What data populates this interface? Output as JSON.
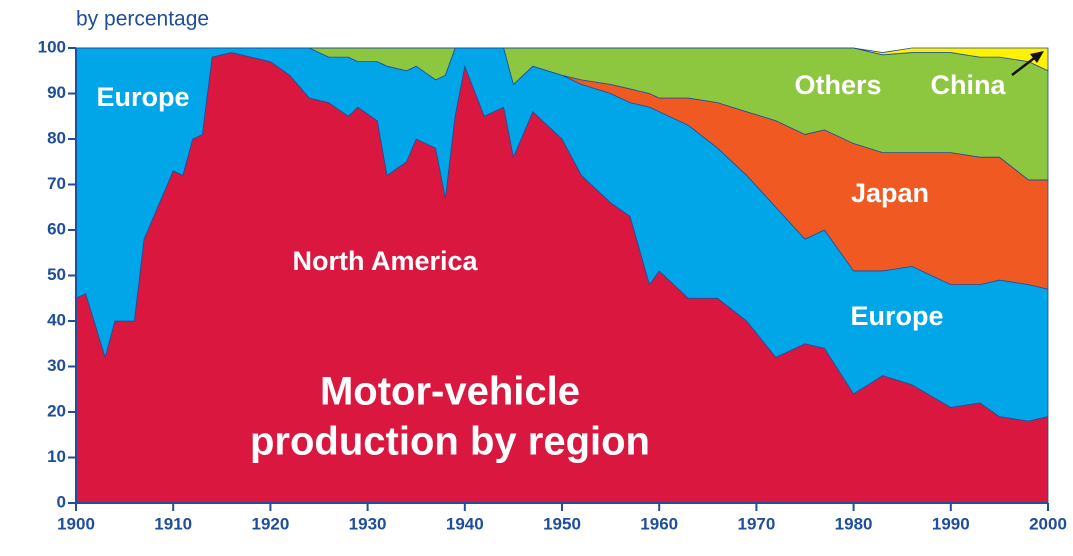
{
  "chart_data": {
    "type": "stacked_area",
    "title": [
      "Motor-vehicle",
      "production by region"
    ],
    "y_label": "by percentage",
    "x": [
      1900,
      1901,
      1903,
      1904,
      1906,
      1907,
      1909,
      1910,
      1911,
      1912,
      1913,
      1914,
      1916,
      1920,
      1922,
      1924,
      1926,
      1928,
      1929,
      1931,
      1932,
      1934,
      1935,
      1937,
      1938,
      1939,
      1940,
      1942,
      1944,
      1945,
      1947,
      1950,
      1952,
      1955,
      1957,
      1959,
      1960,
      1963,
      1966,
      1969,
      1972,
      1975,
      1977,
      1980,
      1983,
      1986,
      1990,
      1993,
      1995,
      1998,
      2000
    ],
    "series": [
      {
        "name": "North America",
        "color": "#d9173f",
        "values": [
          45,
          46,
          32,
          40,
          40,
          58,
          68,
          73,
          72,
          80,
          81,
          98,
          99,
          97,
          94,
          89,
          88,
          85,
          87,
          84,
          72,
          75,
          80,
          78,
          67,
          85,
          96,
          85,
          87,
          76,
          86,
          80,
          72,
          66,
          63,
          48,
          51,
          45,
          45,
          40,
          32,
          35,
          34,
          24,
          28,
          26,
          21,
          22,
          19,
          18,
          19
        ]
      },
      {
        "name": "Europe",
        "color": "#00a6e8",
        "values": [
          55,
          54,
          68,
          60,
          60,
          42,
          32,
          27,
          28,
          20,
          19,
          2,
          1,
          3,
          6,
          11,
          10,
          13,
          10,
          13,
          24,
          20,
          16,
          15,
          27,
          15,
          4,
          15,
          13,
          16,
          10,
          14,
          20,
          24,
          25,
          39,
          35,
          38,
          33,
          32,
          33,
          23,
          26,
          27,
          23,
          26,
          27,
          26,
          30,
          30,
          28
        ]
      },
      {
        "name": "Japan",
        "color": "#f05a22",
        "values": [
          0,
          0,
          0,
          0,
          0,
          0,
          0,
          0,
          0,
          0,
          0,
          0,
          0,
          0,
          0,
          0,
          0,
          0,
          0,
          0,
          0,
          0,
          0,
          0,
          0,
          0,
          0,
          0,
          0,
          0,
          0,
          0,
          1,
          2,
          3,
          3,
          3,
          6,
          10,
          14,
          19,
          23,
          22,
          28,
          26,
          25,
          29,
          28,
          27,
          23,
          24
        ]
      },
      {
        "name": "Others",
        "color": "#8dc63f",
        "values": [
          0,
          0,
          0,
          0,
          0,
          0,
          0,
          0,
          0,
          0,
          0,
          0,
          0,
          0,
          0,
          0,
          2,
          2,
          3,
          3,
          4,
          5,
          4,
          7,
          6,
          0,
          0,
          0,
          0,
          8,
          4,
          6,
          7,
          8,
          9,
          10,
          11,
          11,
          12,
          14,
          16,
          19,
          18,
          21,
          21.5,
          22,
          22,
          22,
          22,
          26,
          24
        ]
      },
      {
        "name": "China",
        "color": "#fff200",
        "values": [
          0,
          0,
          0,
          0,
          0,
          0,
          0,
          0,
          0,
          0,
          0,
          0,
          0,
          0,
          0,
          0,
          0,
          0,
          0,
          0,
          0,
          0,
          0,
          0,
          0,
          0,
          0,
          0,
          0,
          0,
          0,
          0,
          0,
          0,
          0,
          0,
          0,
          0,
          0,
          0,
          0,
          0,
          0,
          0,
          0.5,
          1,
          1,
          2,
          2,
          3,
          5
        ]
      }
    ],
    "xlim": [
      1900,
      2000
    ],
    "ylim": [
      0,
      100
    ],
    "xticks": [
      1900,
      1910,
      1920,
      1930,
      1940,
      1950,
      1960,
      1970,
      1980,
      1990,
      2000
    ],
    "yticks": [
      0,
      10,
      20,
      30,
      40,
      50,
      60,
      70,
      80,
      90,
      100
    ]
  }
}
